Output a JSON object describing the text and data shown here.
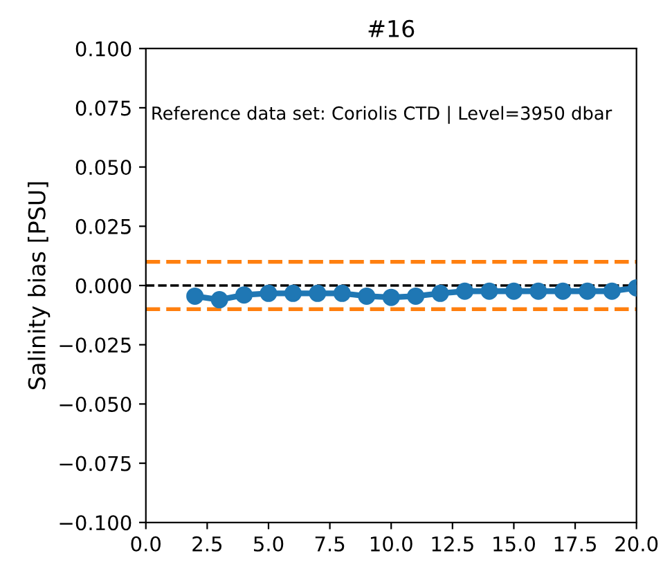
{
  "chart_data": {
    "type": "line",
    "title": "#16",
    "ylabel": "Salinity bias [PSU]",
    "annotations": [
      "Reference data set: Coriolis CTD | Level=3950 dbar"
    ],
    "x": [
      2,
      3,
      4,
      5,
      6,
      7,
      8,
      9,
      10,
      11,
      12,
      13,
      14,
      15,
      16,
      17,
      18,
      19,
      20
    ],
    "series": [
      {
        "color": "#1f77b4",
        "values": [
          -0.0045,
          -0.006,
          -0.004,
          -0.0033,
          -0.0033,
          -0.0033,
          -0.0033,
          -0.0045,
          -0.005,
          -0.0045,
          -0.0033,
          -0.0024,
          -0.0024,
          -0.0024,
          -0.0024,
          -0.0024,
          -0.0024,
          -0.0024,
          -0.001
        ]
      }
    ],
    "marker": "circle",
    "line_style": "solid",
    "ref_lines": [
      {
        "axis": "y",
        "value": 0,
        "color": "#000000",
        "line_style": "dashed"
      },
      {
        "axis": "y",
        "value": 0.01,
        "color": "#ff7f0e",
        "line_style": "dashed"
      },
      {
        "axis": "y",
        "value": -0.01,
        "color": "#ff7f0e",
        "line_style": "dashed"
      }
    ],
    "xlim": [
      0,
      20
    ],
    "xticks": [
      {
        "value": 0,
        "label": "0.0"
      },
      {
        "value": 2.5,
        "label": "2.5"
      },
      {
        "value": 5,
        "label": "5.0"
      },
      {
        "value": 7.5,
        "label": "7.5"
      },
      {
        "value": 10,
        "label": "10.0"
      },
      {
        "value": 12.5,
        "label": "12.5"
      },
      {
        "value": 15,
        "label": "15.0"
      },
      {
        "value": 17.5,
        "label": "17.5"
      },
      {
        "value": 20,
        "label": "20.0"
      }
    ],
    "ylim": [
      -0.1,
      0.1
    ],
    "yticks": [
      {
        "value": -0.1,
        "label": "−0.100"
      },
      {
        "value": -0.075,
        "label": "−0.075"
      },
      {
        "value": -0.05,
        "label": "−0.050"
      },
      {
        "value": -0.025,
        "label": "−0.025"
      },
      {
        "value": 0,
        "label": "0.000"
      },
      {
        "value": 0.025,
        "label": "0.025"
      },
      {
        "value": 0.05,
        "label": "0.050"
      },
      {
        "value": 0.075,
        "label": "0.075"
      },
      {
        "value": 0.1,
        "label": "0.100"
      }
    ],
    "grid": false,
    "legend": false
  }
}
